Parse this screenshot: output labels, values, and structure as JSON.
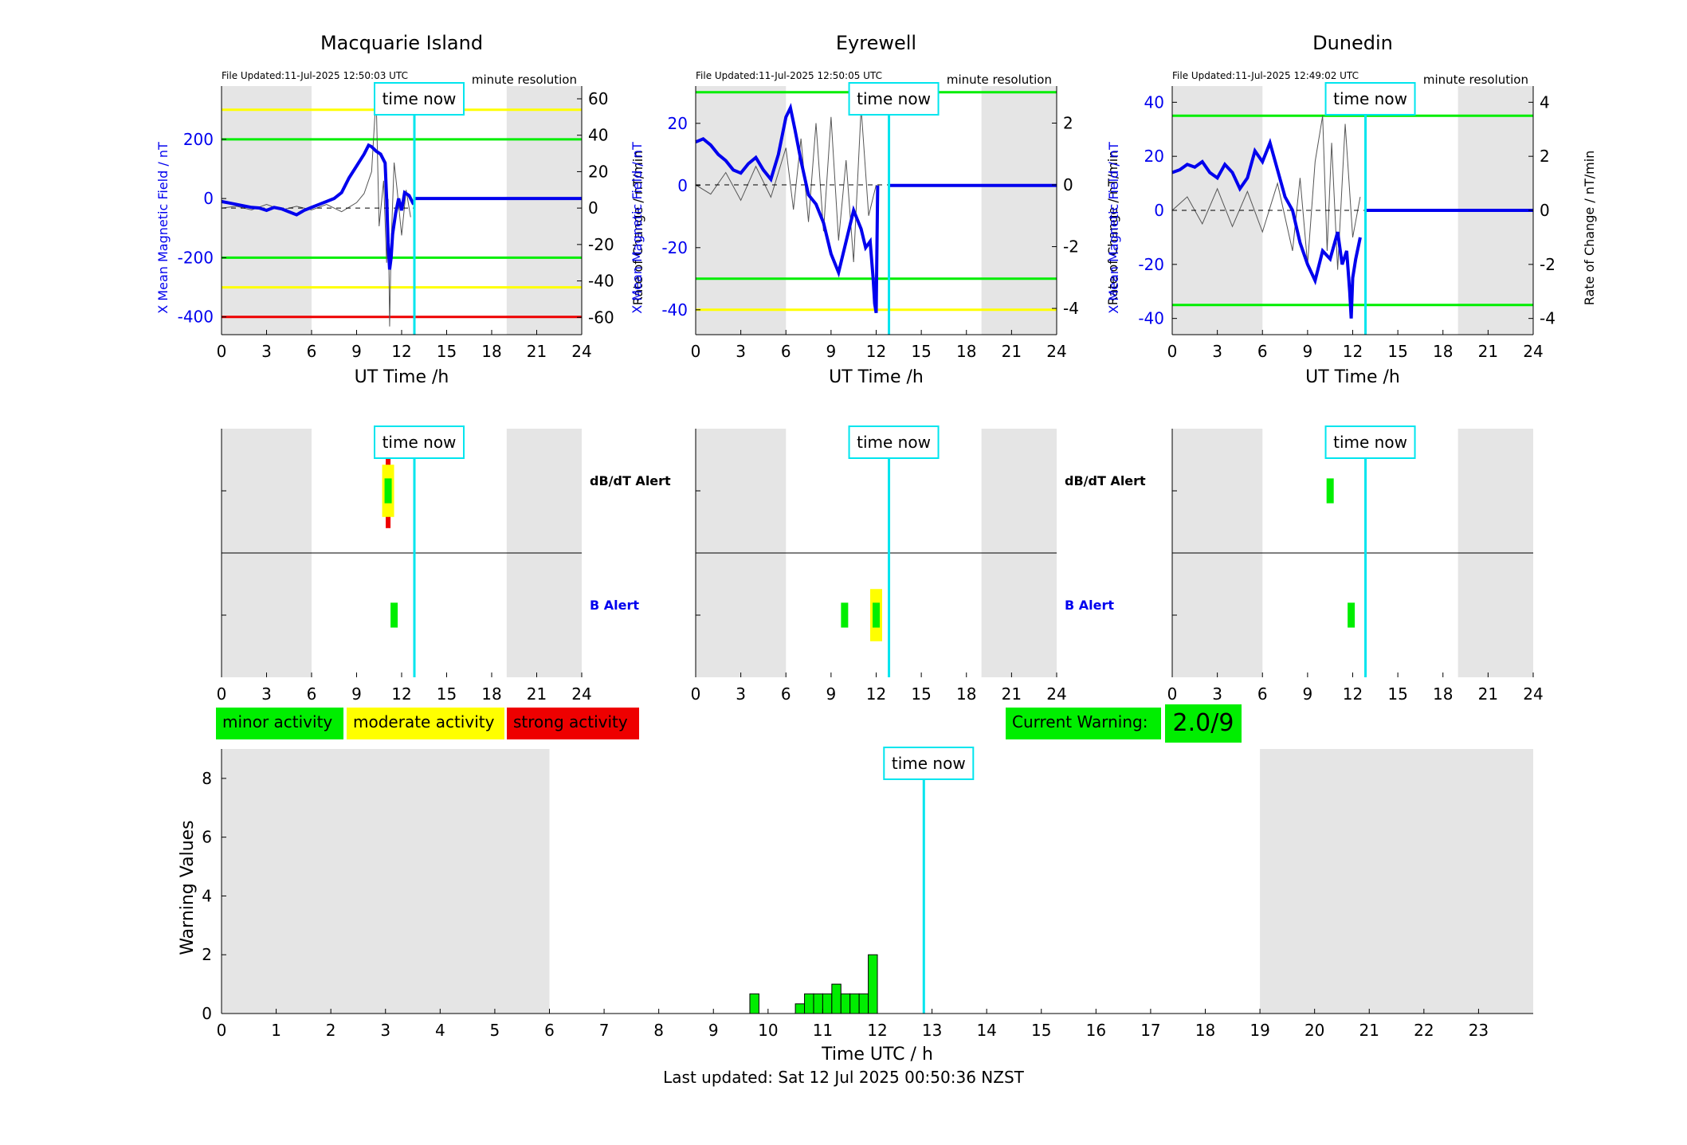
{
  "colors": {
    "field": "#0000ee",
    "rate": "#555555",
    "now": "#00e5ee",
    "night": "#e5e5e5",
    "green": "#00ee00",
    "yellow": "#ffff00",
    "red": "#ee0000"
  },
  "labels": {
    "time_now": "time now",
    "x_axis": "UT Time /h",
    "y_left": "X Mean Magnetic Field / nT",
    "y_right": "Rate of Change / nT/min",
    "resolution": "minute resolution",
    "dbdt_alert": "dB/dT Alert",
    "b_alert": "B Alert"
  },
  "legend": {
    "minor": "minor activity",
    "moderate": "moderate activity",
    "strong": "strong activity",
    "current_warning_label": "Current Warning:",
    "current_warning_value": "2.0/9"
  },
  "footer": "Last updated: Sat 12 Jul 2025 00:50:36 NZST",
  "chart_data": [
    {
      "type": "line",
      "title": "Macquarie Island",
      "file_updated": "File Updated:11-Jul-2025 12:50:03 UTC",
      "xlabel": "UT Time /h",
      "ylabel": "X Mean Magnetic Field / nT",
      "ylabel_right": "Rate of Change / nT/min",
      "xlim": [
        0,
        24
      ],
      "x_ticks": [
        0,
        3,
        6,
        9,
        12,
        15,
        18,
        21,
        24
      ],
      "ylim": [
        -460,
        380
      ],
      "y_ticks": [
        -400,
        -200,
        0,
        200
      ],
      "ylim_right": [
        -69.5,
        67
      ],
      "y_ticks_right": [
        -60,
        -40,
        -20,
        0,
        20,
        40,
        60
      ],
      "night_bands": [
        [
          0,
          6
        ],
        [
          19,
          24
        ]
      ],
      "now": 12.85,
      "thresholds": [
        {
          "value": 300,
          "color": "yellow"
        },
        {
          "value": 200,
          "color": "green"
        },
        {
          "value": -200,
          "color": "green"
        },
        {
          "value": -300,
          "color": "yellow"
        },
        {
          "value": -400,
          "color": "red"
        }
      ],
      "series": [
        {
          "x": [
            0,
            0.5,
            1,
            1.5,
            2,
            2.5,
            3,
            3.5,
            4,
            4.5,
            5,
            5.5,
            6,
            6.5,
            7,
            7.5,
            8,
            8.5,
            9,
            9.5,
            9.8,
            10,
            10.3,
            10.6,
            10.9,
            11.0,
            11.1,
            11.2,
            11.3,
            11.4,
            11.6,
            11.8,
            12.0,
            12.2,
            12.5,
            12.8
          ],
          "y": [
            -10,
            -15,
            -20,
            -25,
            -30,
            -32,
            -40,
            -30,
            -35,
            -45,
            -55,
            -40,
            -30,
            -20,
            -10,
            0,
            20,
            70,
            110,
            150,
            180,
            175,
            160,
            150,
            120,
            0,
            -150,
            -240,
            -200,
            -120,
            -50,
            0,
            -40,
            20,
            10,
            -20
          ]
        }
      ],
      "rate_series": {
        "x": [
          0,
          1,
          2,
          3,
          4,
          5,
          6,
          7,
          8,
          9,
          9.5,
          10,
          10.3,
          10.5,
          10.8,
          11.0,
          11.1,
          11.2,
          11.3,
          11.5,
          11.7,
          12.0,
          12.3,
          12.6
        ],
        "y": [
          0,
          1,
          -1,
          2,
          -1,
          1,
          -1,
          2,
          -2,
          3,
          8,
          20,
          62,
          -10,
          15,
          -30,
          5,
          -65,
          -20,
          25,
          10,
          -15,
          10,
          -5
        ]
      },
      "resolution": "minute resolution"
    },
    {
      "type": "line",
      "title": "Eyrewell",
      "file_updated": "File Updated:11-Jul-2025 12:50:05 UTC",
      "xlabel": "UT Time /h",
      "ylabel": "X Mean Magnetic Field / nT",
      "ylabel_right": "Rate of Change / nT/min",
      "xlim": [
        0,
        24
      ],
      "x_ticks": [
        0,
        3,
        6,
        9,
        12,
        15,
        18,
        21,
        24
      ],
      "ylim": [
        -48,
        32
      ],
      "y_ticks": [
        -40,
        -20,
        0,
        20
      ],
      "ylim_right": [
        -4.85,
        3.2
      ],
      "y_ticks_right": [
        -4,
        -2,
        0,
        2
      ],
      "night_bands": [
        [
          0,
          6
        ],
        [
          19,
          24
        ]
      ],
      "now": 12.85,
      "thresholds": [
        {
          "value": 30,
          "color": "green"
        },
        {
          "value": -30,
          "color": "green"
        },
        {
          "value": -40,
          "color": "yellow"
        }
      ],
      "series": [
        {
          "x": [
            0,
            0.5,
            1,
            1.5,
            2,
            2.5,
            3,
            3.5,
            4,
            4.5,
            5,
            5.5,
            6,
            6.3,
            6.6,
            7,
            7.5,
            8,
            8.5,
            9,
            9.5,
            10,
            10.5,
            11,
            11.3,
            11.6,
            11.8,
            11.9,
            12.0,
            12.1
          ],
          "y": [
            14,
            15,
            13,
            10,
            8,
            5,
            4,
            7,
            9,
            5,
            2,
            10,
            22,
            25,
            18,
            8,
            -3,
            -6,
            -12,
            -22,
            -28,
            -18,
            -8,
            -14,
            -20,
            -18,
            -30,
            -38,
            -41,
            0
          ]
        }
      ],
      "rate_series": {
        "x": [
          0,
          1,
          2,
          3,
          4,
          5,
          6,
          6.5,
          7,
          7.5,
          8,
          8.5,
          9,
          9.5,
          10,
          10.5,
          11,
          11.5,
          12
        ],
        "y": [
          0,
          -0.3,
          0.4,
          -0.5,
          0.6,
          -0.4,
          1.2,
          -0.8,
          1.5,
          -1.2,
          2.0,
          -1.5,
          2.2,
          -1.8,
          0.8,
          -2.5,
          2.5,
          -1.0,
          0
        ]
      },
      "resolution": "minute resolution"
    },
    {
      "type": "line",
      "title": "Dunedin",
      "file_updated": "File Updated:11-Jul-2025 12:49:02 UTC",
      "xlabel": "UT Time /h",
      "ylabel": "X Mean Magnetic Field / nT",
      "ylabel_right": "Rate of Change / nT/min",
      "xlim": [
        0,
        24
      ],
      "x_ticks": [
        0,
        3,
        6,
        9,
        12,
        15,
        18,
        21,
        24
      ],
      "ylim": [
        -46,
        46
      ],
      "y_ticks": [
        -40,
        -20,
        0,
        20,
        40
      ],
      "ylim_right": [
        -4.6,
        4.6
      ],
      "y_ticks_right": [
        -4,
        -2,
        0,
        2,
        4
      ],
      "night_bands": [
        [
          0,
          6
        ],
        [
          19,
          24
        ]
      ],
      "now": 12.85,
      "thresholds": [
        {
          "value": 35,
          "color": "green"
        },
        {
          "value": -35,
          "color": "green"
        }
      ],
      "series": [
        {
          "x": [
            0,
            0.5,
            1,
            1.5,
            2,
            2.5,
            3,
            3.5,
            4,
            4.5,
            5,
            5.5,
            6,
            6.5,
            7,
            7.5,
            8,
            8.5,
            9,
            9.5,
            10,
            10.5,
            11,
            11.3,
            11.6,
            11.8,
            11.9,
            12.0,
            12.2,
            12.5
          ],
          "y": [
            14,
            15,
            17,
            16,
            18,
            14,
            12,
            17,
            14,
            8,
            12,
            22,
            18,
            25,
            15,
            5,
            0,
            -12,
            -20,
            -26,
            -15,
            -18,
            -8,
            -20,
            -15,
            -30,
            -40,
            -25,
            -18,
            -10
          ]
        }
      ],
      "rate_series": {
        "x": [
          0,
          1,
          2,
          3,
          4,
          5,
          6,
          7,
          8,
          8.5,
          9,
          9.5,
          10,
          10.3,
          10.6,
          11,
          11.5,
          12,
          12.5
        ],
        "y": [
          0,
          0.5,
          -0.5,
          0.8,
          -0.6,
          0.7,
          -0.8,
          1.0,
          -1.5,
          1.2,
          -2.0,
          1.8,
          3.5,
          -1.5,
          2.5,
          -2.2,
          3.2,
          -1.0,
          0.5
        ]
      },
      "resolution": "minute resolution"
    },
    {
      "type": "bar",
      "station": "Macquarie Island",
      "xlim": [
        0,
        24
      ],
      "x_ticks": [
        0,
        3,
        6,
        9,
        12,
        15,
        18,
        21,
        24
      ],
      "rows": [
        "dB/dT Alert",
        "B Alert"
      ],
      "night_bands": [
        [
          0,
          6
        ],
        [
          19,
          24
        ]
      ],
      "now": 12.85,
      "alerts": [
        {
          "row": "dB/dT Alert",
          "x": 11.1,
          "level": "strong",
          "extent": 0.6
        },
        {
          "row": "dB/dT Alert",
          "x": 11.1,
          "level": "moderate",
          "extent": 0.42
        },
        {
          "row": "dB/dT Alert",
          "x": 11.1,
          "level": "minor",
          "extent": 0.2
        },
        {
          "row": "B Alert",
          "x": 11.5,
          "level": "minor",
          "extent": 0.2
        }
      ]
    },
    {
      "type": "bar",
      "station": "Eyrewell",
      "xlim": [
        0,
        24
      ],
      "x_ticks": [
        0,
        3,
        6,
        9,
        12,
        15,
        18,
        21,
        24
      ],
      "rows": [
        "dB/dT Alert",
        "B Alert"
      ],
      "night_bands": [
        [
          0,
          6
        ],
        [
          19,
          24
        ]
      ],
      "now": 12.85,
      "alerts": [
        {
          "row": "B Alert",
          "x": 9.9,
          "level": "minor",
          "extent": 0.2
        },
        {
          "row": "B Alert",
          "x": 12.0,
          "level": "moderate",
          "extent": 0.42
        },
        {
          "row": "B Alert",
          "x": 12.0,
          "level": "minor",
          "extent": 0.2
        }
      ]
    },
    {
      "type": "bar",
      "station": "Dunedin",
      "xlim": [
        0,
        24
      ],
      "x_ticks": [
        0,
        3,
        6,
        9,
        12,
        15,
        18,
        21,
        24
      ],
      "rows": [
        "dB/dT Alert",
        "B Alert"
      ],
      "night_bands": [
        [
          0,
          6
        ],
        [
          19,
          24
        ]
      ],
      "now": 12.85,
      "alerts": [
        {
          "row": "dB/dT Alert",
          "x": 10.5,
          "level": "minor",
          "extent": 0.2
        },
        {
          "row": "B Alert",
          "x": 11.9,
          "level": "minor",
          "extent": 0.2
        }
      ]
    },
    {
      "type": "bar",
      "xlabel": "Time UTC / h",
      "ylabel": "Warning Values",
      "xlim": [
        0,
        24
      ],
      "x_ticks": [
        0,
        1,
        2,
        3,
        4,
        5,
        6,
        7,
        8,
        9,
        10,
        11,
        12,
        13,
        14,
        15,
        16,
        17,
        18,
        19,
        20,
        21,
        22,
        23
      ],
      "ylim": [
        0,
        9
      ],
      "y_ticks": [
        0,
        2,
        4,
        6,
        8
      ],
      "night_bands": [
        [
          0,
          6
        ],
        [
          19,
          24
        ]
      ],
      "now": 12.85,
      "bar_width": 0.1667,
      "x": [
        9.75,
        10.583,
        10.75,
        10.917,
        11.083,
        11.25,
        11.417,
        11.583,
        11.75,
        11.917
      ],
      "values": [
        0.67,
        0.33,
        0.67,
        0.67,
        0.67,
        1.0,
        0.67,
        0.67,
        0.67,
        2.0
      ]
    }
  ]
}
